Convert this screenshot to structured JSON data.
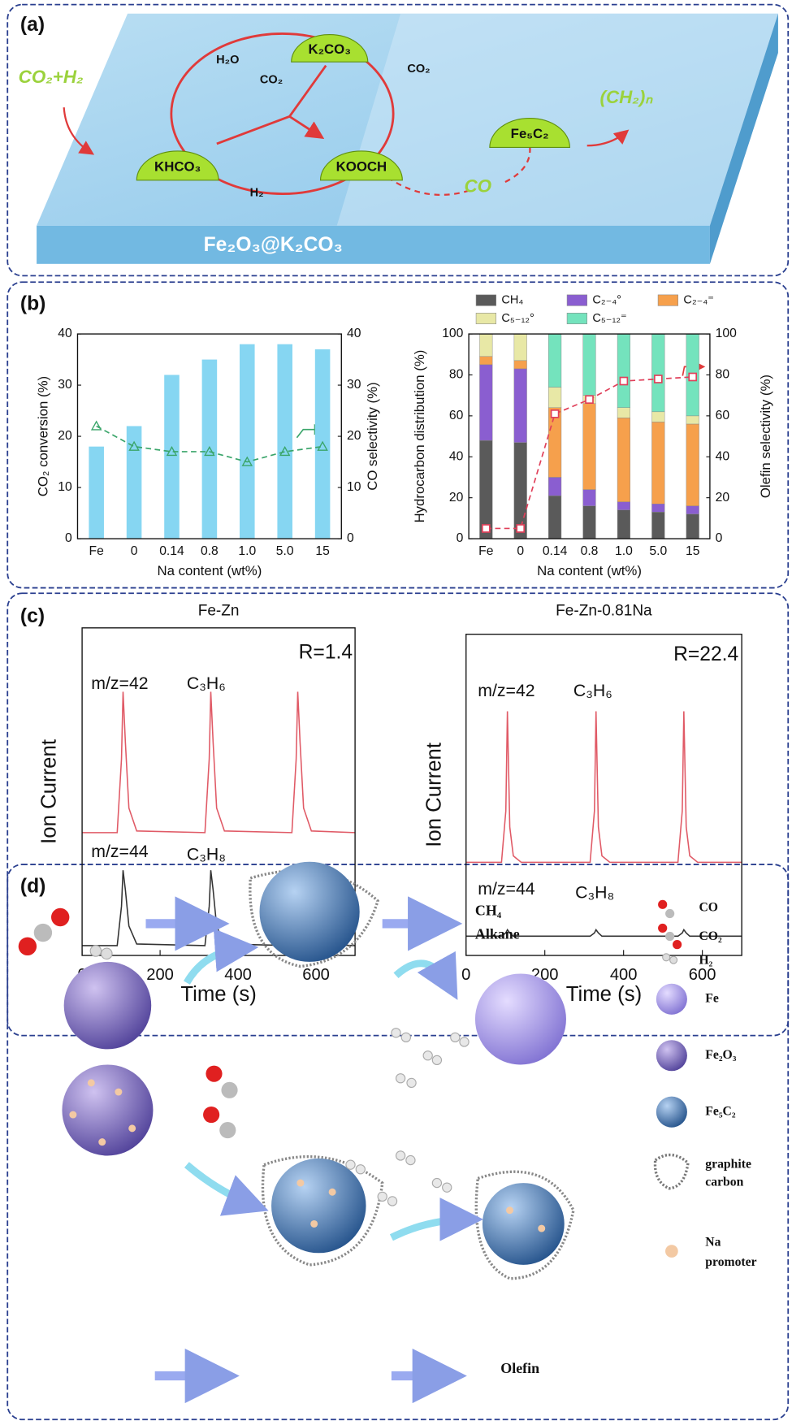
{
  "panels": [
    "(a)",
    "(b)",
    "(c)",
    "(d)"
  ],
  "panel_a": {
    "substrate": "Fe₂O₃@K₂CO₃",
    "feed": "CO₂+H₂",
    "species": [
      "K₂CO₃",
      "KHCO₃",
      "KOOCH",
      "Fe₅C₂"
    ],
    "molecules": [
      "H₂O",
      "CO₂",
      "CO₂",
      "H₂"
    ],
    "intermediate": "CO",
    "product": "(CH₂)ₙ"
  },
  "panel_d": {
    "products": [
      "CH₄",
      "Alkane",
      "Olefin"
    ],
    "legend": [
      "CO",
      "CO₂",
      "H₂",
      "Fe",
      "Fe₂O₃",
      "Fe₅C₂",
      "graphite",
      "carbon",
      "Na",
      "promoter"
    ]
  },
  "chart_data": [
    {
      "type": "bar",
      "xlabel": "Na content (wt%)",
      "ylabel": "CO₂ conversion (%)",
      "y2label": "CO selectivity (%)",
      "categories": [
        "Fe",
        "0",
        "0.14",
        "0.8",
        "1.0",
        "5.0",
        "15"
      ],
      "ylim": [
        0,
        40
      ],
      "yticks": [
        0,
        10,
        20,
        30,
        40
      ],
      "y2lim": [
        0,
        40
      ],
      "y2ticks": [
        0,
        10,
        20,
        30,
        40
      ],
      "series": [
        {
          "color": "#86d6f2",
          "values": [
            18,
            22,
            32,
            35,
            38,
            38,
            37
          ]
        },
        {
          "type": "line",
          "axis": "y2",
          "color": "#3aa56a",
          "marker": "triangle",
          "linestyle": "dashed",
          "values": [
            22,
            18,
            17,
            17,
            15,
            17,
            18
          ]
        }
      ]
    },
    {
      "type": "bar",
      "stacked": true,
      "xlabel": "Na content (wt%)",
      "ylabel": "Hydrocarbon distribution (%)",
      "y2label": "Olefin selectivity (%)",
      "categories": [
        "Fe",
        "0",
        "0.14",
        "0.8",
        "1.0",
        "5.0",
        "15"
      ],
      "ylim": [
        0,
        100
      ],
      "yticks": [
        0,
        20,
        40,
        60,
        80,
        100
      ],
      "y2lim": [
        0,
        100
      ],
      "y2ticks": [
        0,
        20,
        40,
        60,
        80,
        100
      ],
      "series": [
        {
          "name": "CH₄",
          "color": "#5a5a5a",
          "values": [
            48,
            47,
            21,
            16,
            14,
            13,
            12
          ]
        },
        {
          "name": "C₂₋₄°",
          "color": "#8a5ed0",
          "values": [
            37,
            36,
            9,
            8,
            4,
            4,
            4
          ]
        },
        {
          "name": "C₂₋₄⁼",
          "color": "#f6a04c",
          "values": [
            4,
            4,
            34,
            42,
            41,
            40,
            40
          ]
        },
        {
          "name": "C₅₋₁₂°",
          "color": "#e8e8a6",
          "values": [
            11,
            13,
            10,
            4,
            5,
            5,
            4
          ]
        },
        {
          "name": "C₅₋₁₂⁼",
          "color": "#74e3bd",
          "values": [
            0,
            0,
            26,
            30,
            36,
            38,
            40
          ]
        },
        {
          "type": "line",
          "axis": "y2",
          "color": "#e0405a",
          "marker": "square",
          "linestyle": "dashed",
          "values": [
            5,
            5,
            61,
            68,
            77,
            78,
            79
          ]
        }
      ]
    },
    {
      "type": "line",
      "title": "Fe-Zn",
      "xlabel": "Time (s)",
      "ylabel": "Ion Current",
      "annotations": [
        "R=1.4",
        "m/z=42",
        "C₃H₆",
        "m/z=44",
        "C₃H₈"
      ],
      "xlim": [
        0,
        700
      ],
      "xticks": [
        0,
        200,
        400,
        600
      ],
      "ylim": [
        0,
        10
      ],
      "x": [
        0,
        90,
        101,
        105,
        111,
        120,
        140,
        315,
        326,
        330,
        336,
        345,
        365,
        538,
        549,
        553,
        559,
        568,
        588,
        700
      ],
      "series": [
        {
          "color": "#e05a66",
          "values": [
            3.75,
            3.75,
            6,
            8.05,
            6.5,
            4.5,
            3.8,
            3.75,
            6,
            8.05,
            6.5,
            4.5,
            3.8,
            3.75,
            6,
            8.05,
            6.5,
            4.5,
            3.8,
            3.75
          ]
        },
        {
          "color": "#333333",
          "values": [
            0.3,
            0.3,
            1.5,
            2.6,
            2.0,
            0.9,
            0.35,
            0.3,
            1.5,
            2.6,
            2.0,
            0.9,
            0.35,
            0.3,
            1.5,
            2.6,
            2.0,
            0.9,
            0.35,
            0.3
          ]
        }
      ]
    },
    {
      "type": "line",
      "title": "Fe-Zn-0.81Na",
      "xlabel": "Time (s)",
      "ylabel": "Ion Current",
      "annotations": [
        "R=22.4",
        "m/z=42",
        "C₃H₆",
        "m/z=44",
        "C₃H₈"
      ],
      "xlim": [
        0,
        700
      ],
      "xticks": [
        0,
        200,
        400,
        600
      ],
      "ylim": [
        0,
        10
      ],
      "x": [
        0,
        90,
        101,
        105,
        111,
        120,
        140,
        315,
        326,
        330,
        336,
        345,
        365,
        538,
        549,
        553,
        559,
        568,
        588,
        700
      ],
      "series": [
        {
          "color": "#e05a66",
          "values": [
            2.9,
            2.9,
            4.5,
            7.6,
            4.0,
            3.1,
            2.9,
            2.9,
            4.5,
            7.6,
            4.0,
            3.1,
            2.9,
            2.9,
            4.5,
            7.6,
            4.0,
            3.1,
            2.9,
            2.9
          ]
        },
        {
          "color": "#333333",
          "values": [
            0.6,
            0.6,
            0.7,
            0.8,
            0.7,
            0.6,
            0.6,
            0.6,
            0.7,
            0.8,
            0.7,
            0.6,
            0.6,
            0.6,
            0.7,
            0.8,
            0.7,
            0.6,
            0.6,
            0.6
          ]
        }
      ]
    }
  ]
}
